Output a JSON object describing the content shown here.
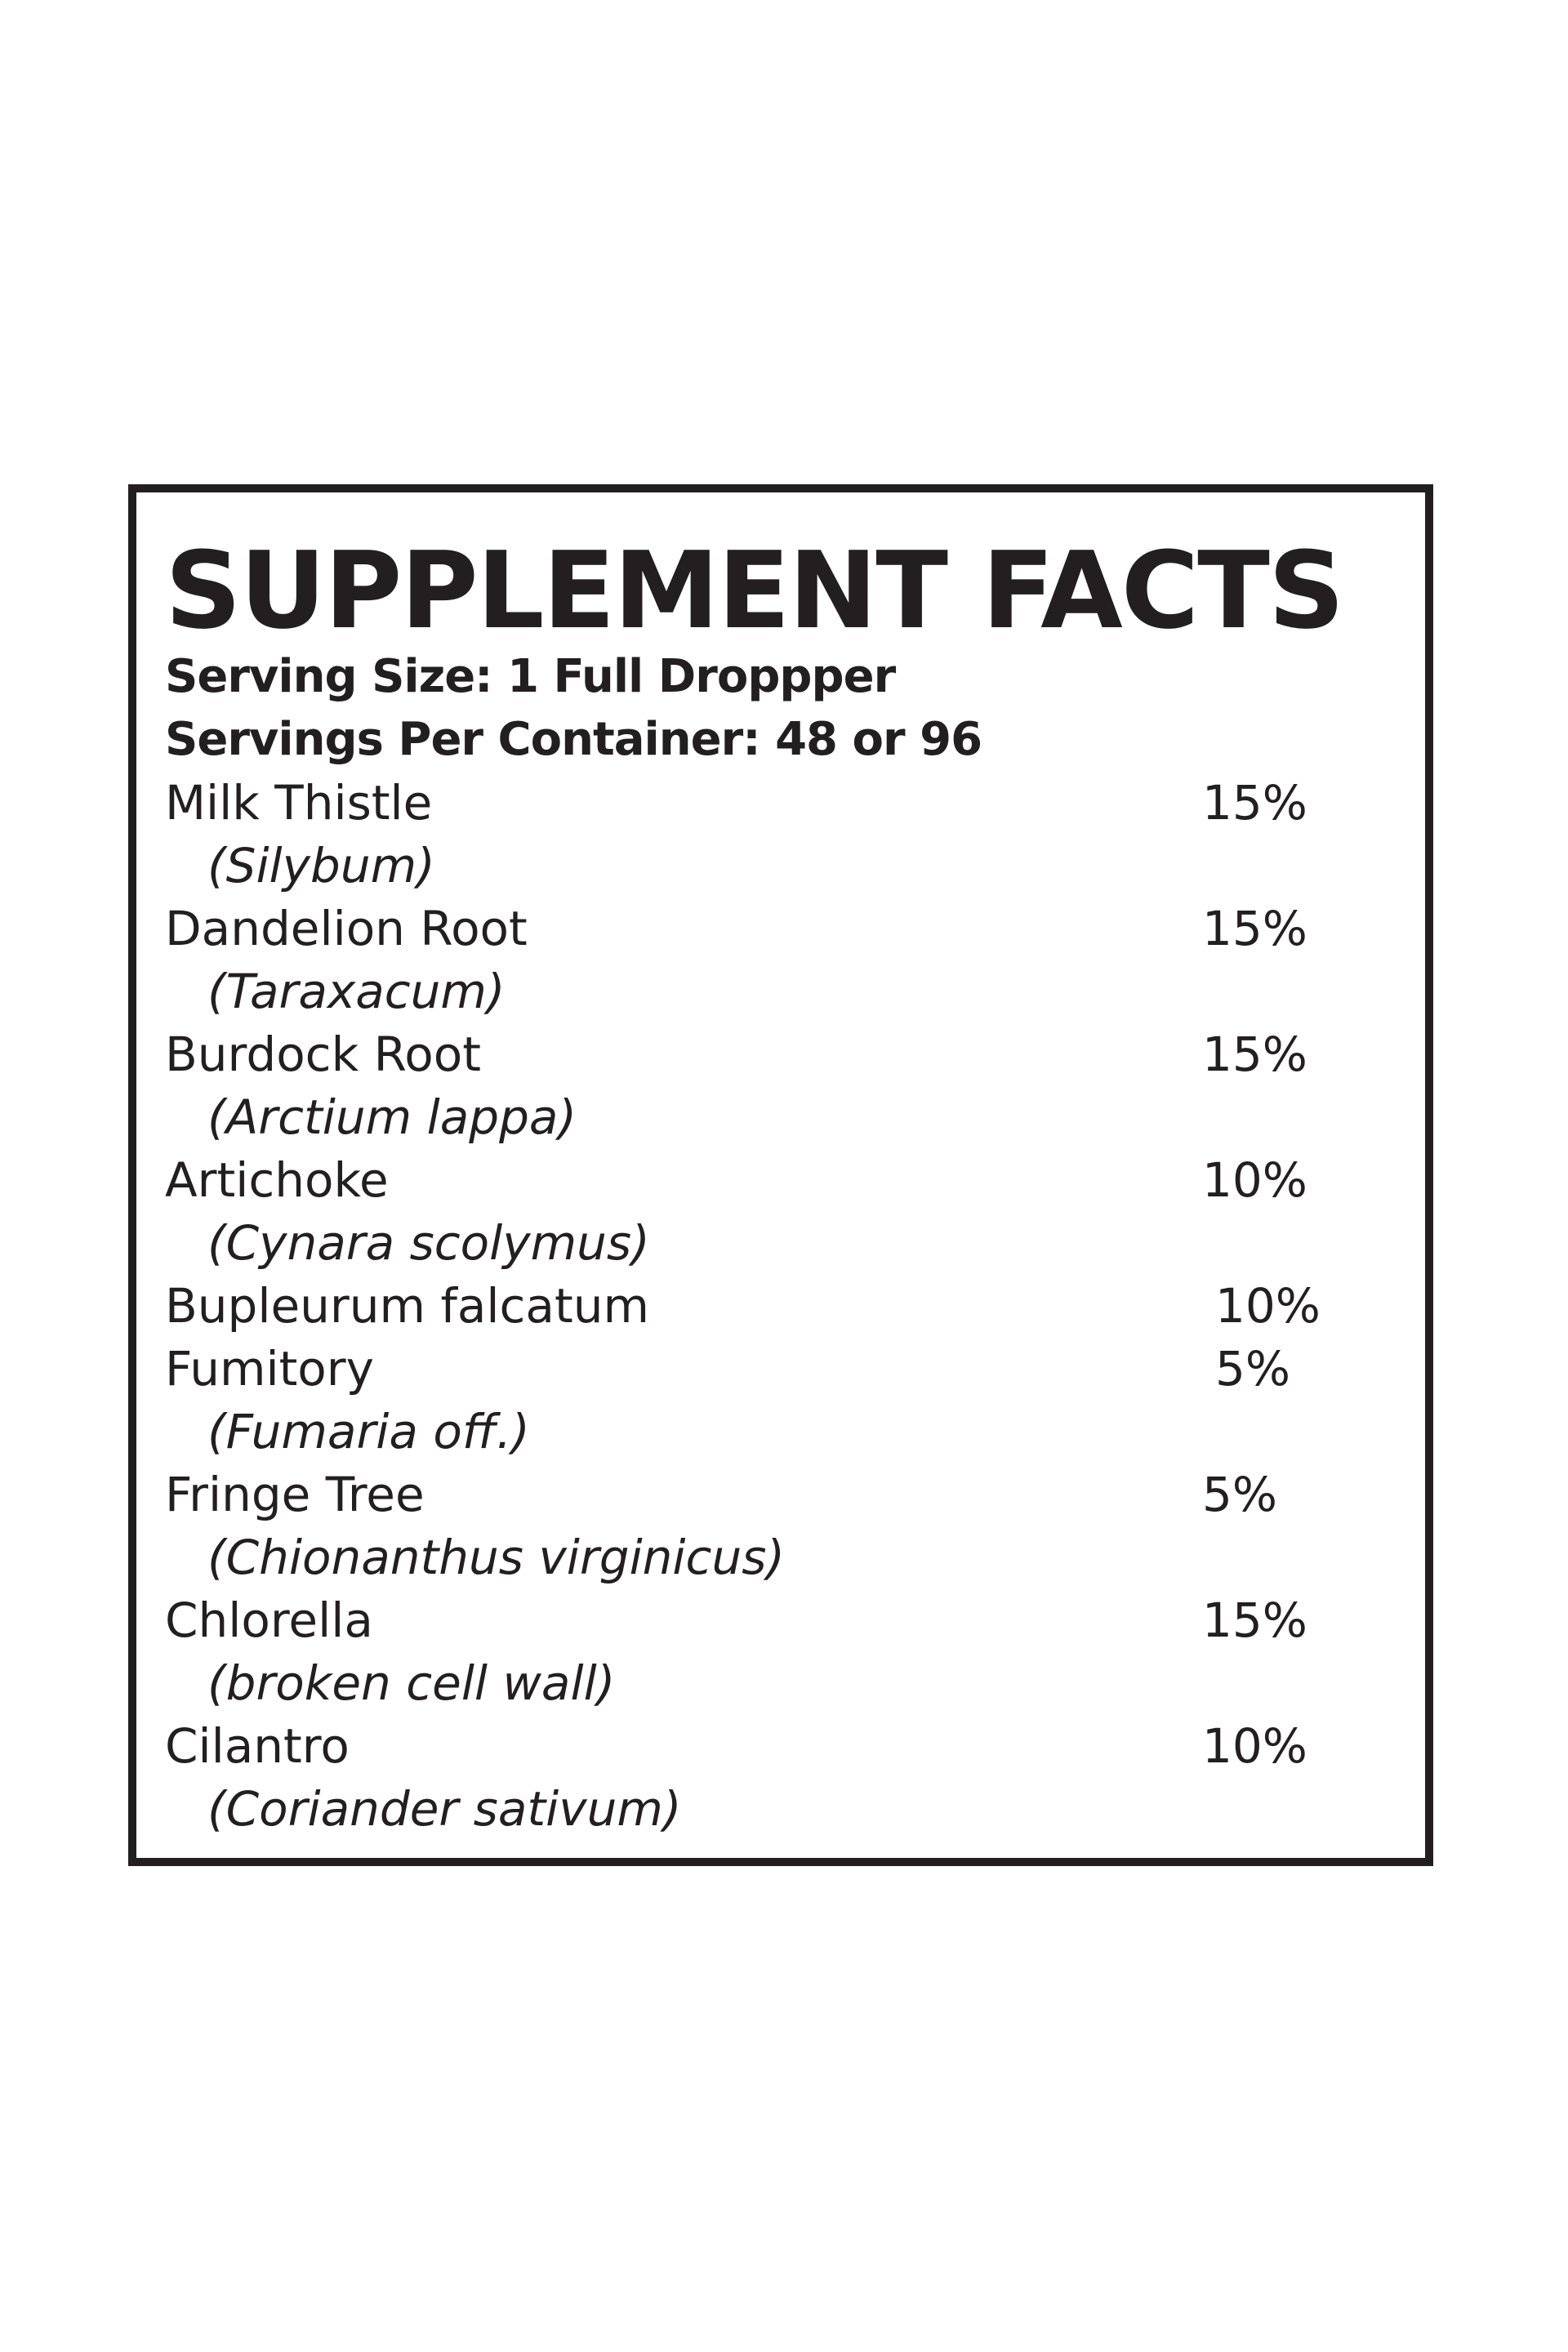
{
  "label": {
    "title": "SUPPLEMENT FACTS",
    "serving_size": "Serving Size: 1 Full Droppper",
    "servings_per_container": "Servings Per Container: 48 or 96"
  },
  "ingredients": [
    {
      "name": "Milk Thistle",
      "latin": "(Silybum)",
      "percent": "15%"
    },
    {
      "name": "Dandelion Root",
      "latin": "(Taraxacum)",
      "percent": "15%"
    },
    {
      "name": "Burdock Root",
      "latin": "(Arctium lappa)",
      "percent": "15%"
    },
    {
      "name": "Artichoke",
      "latin": "(Cynara scolymus)",
      "percent": "10%"
    },
    {
      "name": "Bupleurum falcatum",
      "latin": "",
      "percent": "10%"
    },
    {
      "name": "Fumitory",
      "latin": "(Fumaria off.)",
      "percent": "5%"
    },
    {
      "name": "Fringe Tree",
      "latin": "(Chionanthus virginicus)",
      "percent": "5%"
    },
    {
      "name": "Chlorella",
      "latin": "(broken cell wall)",
      "percent": "15%"
    },
    {
      "name": "Cilantro",
      "latin": "(Coriander sativum)",
      "percent": "10%"
    }
  ],
  "colors": {
    "ink": "#231f20",
    "background": "#ffffff"
  }
}
